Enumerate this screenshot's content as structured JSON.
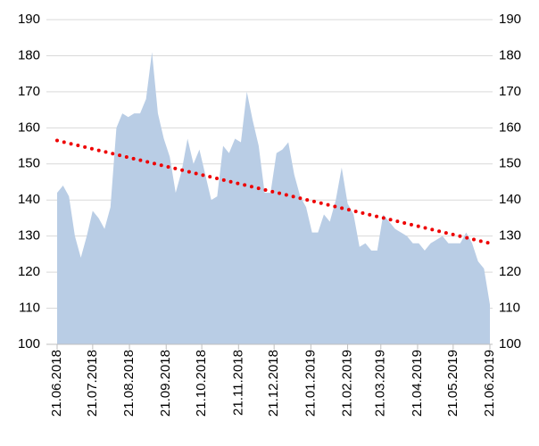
{
  "chart_data": {
    "type": "area",
    "x": [
      "21.06.2018",
      "26.06.2018",
      "01.07.2018",
      "06.07.2018",
      "11.07.2018",
      "16.07.2018",
      "21.07.2018",
      "26.07.2018",
      "31.07.2018",
      "05.08.2018",
      "10.08.2018",
      "15.08.2018",
      "20.08.2018",
      "25.08.2018",
      "30.08.2018",
      "04.09.2018",
      "09.09.2018",
      "14.09.2018",
      "19.09.2018",
      "24.09.2018",
      "29.09.2018",
      "04.10.2018",
      "09.10.2018",
      "14.10.2018",
      "19.10.2018",
      "24.10.2018",
      "29.10.2018",
      "03.11.2018",
      "08.11.2018",
      "13.11.2018",
      "18.11.2018",
      "23.11.2018",
      "28.11.2018",
      "03.12.2018",
      "08.12.2018",
      "13.12.2018",
      "18.12.2018",
      "23.12.2018",
      "28.12.2018",
      "02.01.2019",
      "07.01.2019",
      "12.01.2019",
      "17.01.2019",
      "22.01.2019",
      "27.01.2019",
      "01.02.2019",
      "06.02.2019",
      "11.02.2019",
      "16.02.2019",
      "21.02.2019",
      "26.02.2019",
      "03.03.2019",
      "08.03.2019",
      "13.03.2019",
      "18.03.2019",
      "23.03.2019",
      "28.03.2019",
      "02.04.2019",
      "07.04.2019",
      "12.04.2019",
      "17.04.2019",
      "22.04.2019",
      "27.04.2019",
      "02.05.2019",
      "07.05.2019",
      "12.05.2019",
      "17.05.2019",
      "22.05.2019",
      "27.05.2019",
      "01.06.2019",
      "06.06.2019",
      "11.06.2019",
      "16.06.2019",
      "21.06.2019"
    ],
    "series": [
      {
        "color": "#b9cde5",
        "values": [
          142,
          144,
          141,
          130,
          124,
          130,
          137,
          135,
          132,
          138,
          160,
          164,
          163,
          164,
          164,
          168,
          181,
          164,
          157,
          152,
          142,
          148,
          157,
          150,
          154,
          147,
          140,
          141,
          155,
          153,
          157,
          156,
          170,
          162,
          155,
          142,
          142,
          153,
          154,
          156,
          147,
          141,
          138,
          131,
          131,
          136,
          134,
          140,
          149,
          139,
          136,
          127,
          128,
          126,
          126,
          136,
          134,
          132,
          131,
          130,
          128,
          128,
          126,
          128,
          129,
          130,
          128,
          128,
          128,
          131,
          128,
          123,
          121,
          111
        ]
      }
    ],
    "trend": {
      "x": [
        "21.06.2018",
        "21.06.2019"
      ],
      "values": [
        156.5,
        128
      ],
      "color": "#ee0000",
      "style": "dotted"
    },
    "xlim": [
      "21.06.2018",
      "21.06.2019"
    ],
    "xticks": [
      "21.06.2018",
      "21.07.2018",
      "21.08.2018",
      "21.09.2018",
      "21.10.2018",
      "21.11.2018",
      "21.12.2018",
      "21.01.2019",
      "21.02.2019",
      "21.03.2019",
      "21.04.2019",
      "21.05.2019",
      "21.06.2019"
    ],
    "ylim": [
      100,
      190
    ],
    "yticks": [
      100,
      110,
      120,
      130,
      140,
      150,
      160,
      170,
      180,
      190
    ],
    "y2lim": [
      100,
      190
    ],
    "y2ticks": [
      100,
      110,
      120,
      130,
      140,
      150,
      160,
      170,
      180,
      190
    ],
    "grid": true
  }
}
